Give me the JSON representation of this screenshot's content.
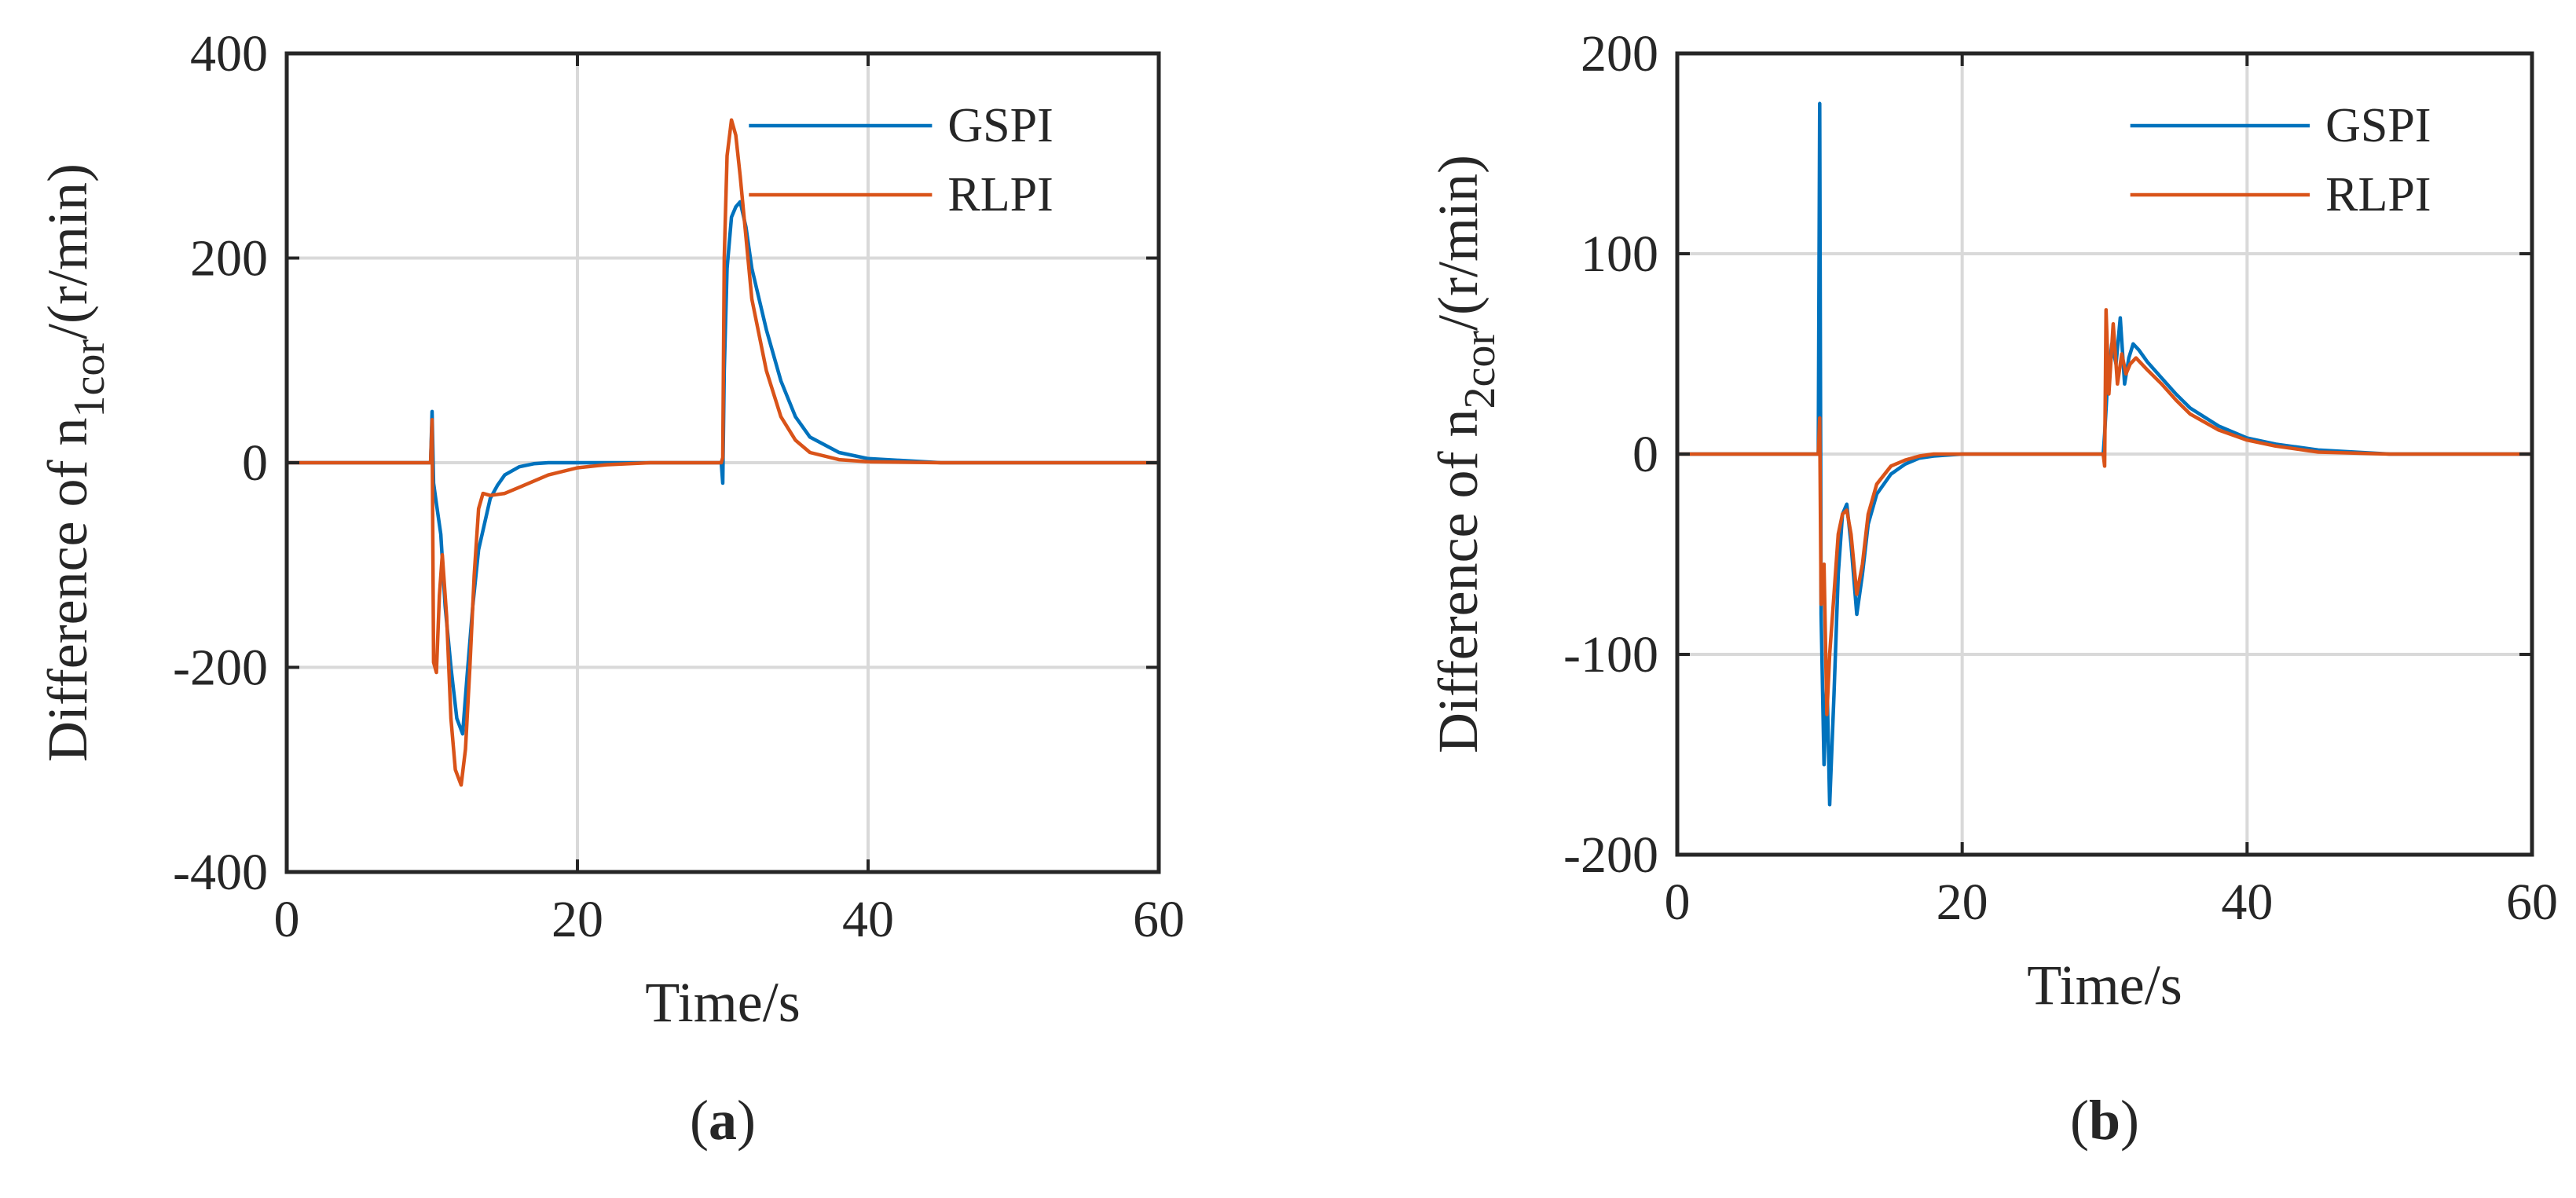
{
  "chart_data": [
    {
      "type": "line",
      "panel_label": "a",
      "xlabel": "Time/s",
      "ylabel": {
        "prefix": "Difference of n",
        "sub": "1cor",
        "suffix": "/(r/min)"
      },
      "xlim": [
        0,
        60
      ],
      "ylim": [
        -400,
        400
      ],
      "xticks": [
        0,
        20,
        40,
        60
      ],
      "yticks": [
        -400,
        -200,
        0,
        200,
        400
      ],
      "grid": true,
      "legend_position": "top-right",
      "series": [
        {
          "name": "GSPI",
          "color": "#0072BD",
          "x": [
            0,
            9.9,
            10,
            10.1,
            10.3,
            10.6,
            10.9,
            11.3,
            11.7,
            12.1,
            12.4,
            12.8,
            13.2,
            13.6,
            14,
            14.5,
            15,
            16,
            17,
            18,
            20,
            25,
            29.9,
            30,
            30.1,
            30.3,
            30.6,
            30.9,
            31.2,
            31.6,
            32,
            33,
            34,
            35,
            36,
            38,
            40,
            45,
            50,
            60
          ],
          "y": [
            0,
            0,
            50,
            -20,
            -40,
            -70,
            -140,
            -200,
            -250,
            -265,
            -210,
            -140,
            -85,
            -60,
            -35,
            -22,
            -12,
            -4,
            -1,
            0,
            0,
            0,
            0,
            -20,
            90,
            190,
            240,
            250,
            255,
            230,
            190,
            130,
            80,
            45,
            25,
            10,
            4,
            0,
            0,
            0
          ]
        },
        {
          "name": "RLPI",
          "color": "#D95319",
          "x": [
            0,
            9.9,
            10,
            10.1,
            10.3,
            10.5,
            10.7,
            11,
            11.3,
            11.6,
            12,
            12.3,
            12.6,
            12.9,
            13.2,
            13.5,
            14,
            15,
            16,
            17,
            18,
            20,
            22,
            25,
            29.9,
            30,
            30.1,
            30.3,
            30.6,
            30.9,
            31.2,
            31.6,
            32,
            33,
            34,
            35,
            36,
            38,
            40,
            45,
            50,
            60
          ],
          "y": [
            0,
            0,
            42,
            -195,
            -205,
            -130,
            -90,
            -150,
            -250,
            -300,
            -315,
            -280,
            -200,
            -110,
            -45,
            -30,
            -32,
            -30,
            -24,
            -18,
            -12,
            -5,
            -2,
            0,
            0,
            5,
            200,
            300,
            335,
            320,
            280,
            220,
            160,
            90,
            45,
            22,
            10,
            3,
            1,
            0,
            0,
            0
          ]
        }
      ]
    },
    {
      "type": "line",
      "panel_label": "b",
      "xlabel": "Time/s",
      "ylabel": {
        "prefix": "Difference of n",
        "sub": "2cor",
        "suffix": "/(r/min)"
      },
      "xlim": [
        0,
        60
      ],
      "ylim": [
        -200,
        200
      ],
      "xticks": [
        0,
        20,
        40,
        60
      ],
      "yticks": [
        -200,
        -100,
        0,
        100,
        200
      ],
      "grid": true,
      "legend_position": "top-right",
      "series": [
        {
          "name": "GSPI",
          "color": "#0072BD",
          "x": [
            0,
            9.9,
            10,
            10.1,
            10.3,
            10.5,
            10.7,
            11,
            11.3,
            11.6,
            11.9,
            12.2,
            12.6,
            13,
            13.4,
            14,
            15,
            16,
            17,
            18,
            20,
            25,
            29.9,
            30,
            30.2,
            30.5,
            30.8,
            31.1,
            31.4,
            31.7,
            32,
            32.4,
            33,
            34,
            35,
            36,
            38,
            40,
            42,
            45,
            50,
            55,
            60
          ],
          "y": [
            0,
            0,
            175,
            -80,
            -155,
            -110,
            -175,
            -120,
            -60,
            -30,
            -25,
            -45,
            -80,
            -60,
            -35,
            -20,
            -10,
            -5,
            -2,
            -1,
            0,
            0,
            0,
            10,
            35,
            55,
            45,
            68,
            35,
            48,
            55,
            52,
            46,
            38,
            30,
            23,
            14,
            8,
            5,
            2,
            0,
            0,
            0
          ]
        },
        {
          "name": "RLPI",
          "color": "#D95319",
          "x": [
            0,
            9.9,
            10,
            10.1,
            10.3,
            10.5,
            10.7,
            11,
            11.3,
            11.6,
            11.9,
            12.2,
            12.6,
            13,
            13.4,
            14,
            15,
            16,
            17,
            18,
            20,
            25,
            29.9,
            30,
            30.1,
            30.3,
            30.6,
            30.9,
            31.2,
            31.5,
            31.8,
            32.2,
            33,
            34,
            35,
            36,
            38,
            40,
            42,
            45,
            50,
            55,
            60
          ],
          "y": [
            0,
            0,
            18,
            -75,
            -55,
            -130,
            -100,
            -70,
            -40,
            -30,
            -28,
            -40,
            -70,
            -55,
            -30,
            -15,
            -6,
            -3,
            -1,
            0,
            0,
            0,
            0,
            -6,
            72,
            30,
            65,
            35,
            50,
            40,
            45,
            48,
            42,
            35,
            27,
            20,
            12,
            7,
            4,
            1,
            0,
            0,
            0
          ]
        }
      ]
    }
  ]
}
